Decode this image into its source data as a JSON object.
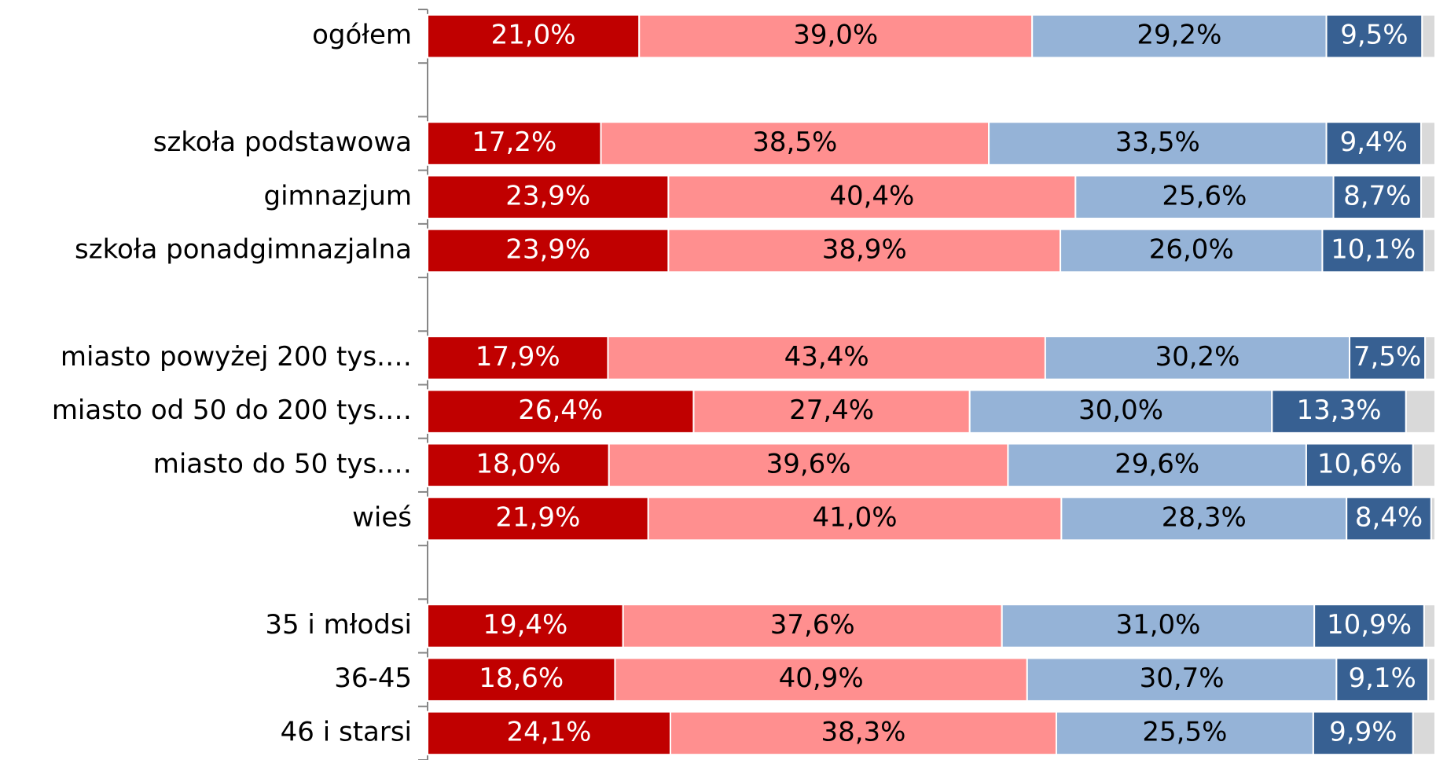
{
  "chart_data": {
    "type": "stacked_bar",
    "orientation": "horizontal",
    "categories": [
      "ogółem",
      null,
      "szkoła podstawowa",
      "gimnazjum",
      "szkoła ponadgimnazjalna",
      null,
      "miasto powyżej 200 tys.…",
      "miasto od 50 do 200 tys.…",
      "miasto do 50 tys.…",
      "wieś",
      null,
      "35 i młodsi",
      "36-45",
      "46 i starsi"
    ],
    "xlim": [
      0,
      100
    ],
    "series": [
      {
        "color": "#c00000",
        "label_color": "#ffffff",
        "values": [
          21.0,
          null,
          17.2,
          23.9,
          23.9,
          null,
          17.9,
          26.4,
          18.0,
          21.9,
          null,
          19.4,
          18.6,
          24.1
        ],
        "value_labels": [
          "21,0%",
          null,
          "17,2%",
          "23,9%",
          "23,9%",
          null,
          "17,9%",
          "26,4%",
          "18,0%",
          "21,9%",
          null,
          "19,4%",
          "18,6%",
          "24,1%"
        ]
      },
      {
        "color": "#ff8f8f",
        "label_color": "#000000",
        "values": [
          39.0,
          null,
          38.5,
          40.4,
          38.9,
          null,
          43.4,
          27.4,
          39.6,
          41.0,
          null,
          37.6,
          40.9,
          38.3
        ],
        "value_labels": [
          "39,0%",
          null,
          "38,5%",
          "40,4%",
          "38,9%",
          null,
          "43,4%",
          "27,4%",
          "39,6%",
          "41,0%",
          null,
          "37,6%",
          "40,9%",
          "38,3%"
        ]
      },
      {
        "color": "#95b3d7",
        "label_color": "#000000",
        "values": [
          29.2,
          null,
          33.5,
          25.6,
          26.0,
          null,
          30.2,
          30.0,
          29.6,
          28.3,
          null,
          31.0,
          30.7,
          25.5
        ],
        "value_labels": [
          "29,2%",
          null,
          "33,5%",
          "25,6%",
          "26,0%",
          null,
          "30,2%",
          "30,0%",
          "29,6%",
          "28,3%",
          null,
          "31,0%",
          "30,7%",
          "25,5%"
        ]
      },
      {
        "color": "#376092",
        "label_color": "#ffffff",
        "values": [
          9.5,
          null,
          9.4,
          8.7,
          10.1,
          null,
          7.5,
          13.3,
          10.6,
          8.4,
          null,
          10.9,
          9.1,
          9.9
        ],
        "value_labels": [
          "9,5%",
          null,
          "9,4%",
          "8,7%",
          "10,1%",
          null,
          "7,5%",
          "13,3%",
          "10,6%",
          "8,4%",
          null,
          "10,9%",
          "9,1%",
          "9,9%"
        ]
      },
      {
        "color": "#d9d9d9",
        "values": [
          1.3,
          null,
          1.4,
          1.4,
          1.1,
          null,
          1.0,
          2.9,
          2.2,
          0.4,
          null,
          1.1,
          0.7,
          2.2
        ]
      }
    ]
  }
}
